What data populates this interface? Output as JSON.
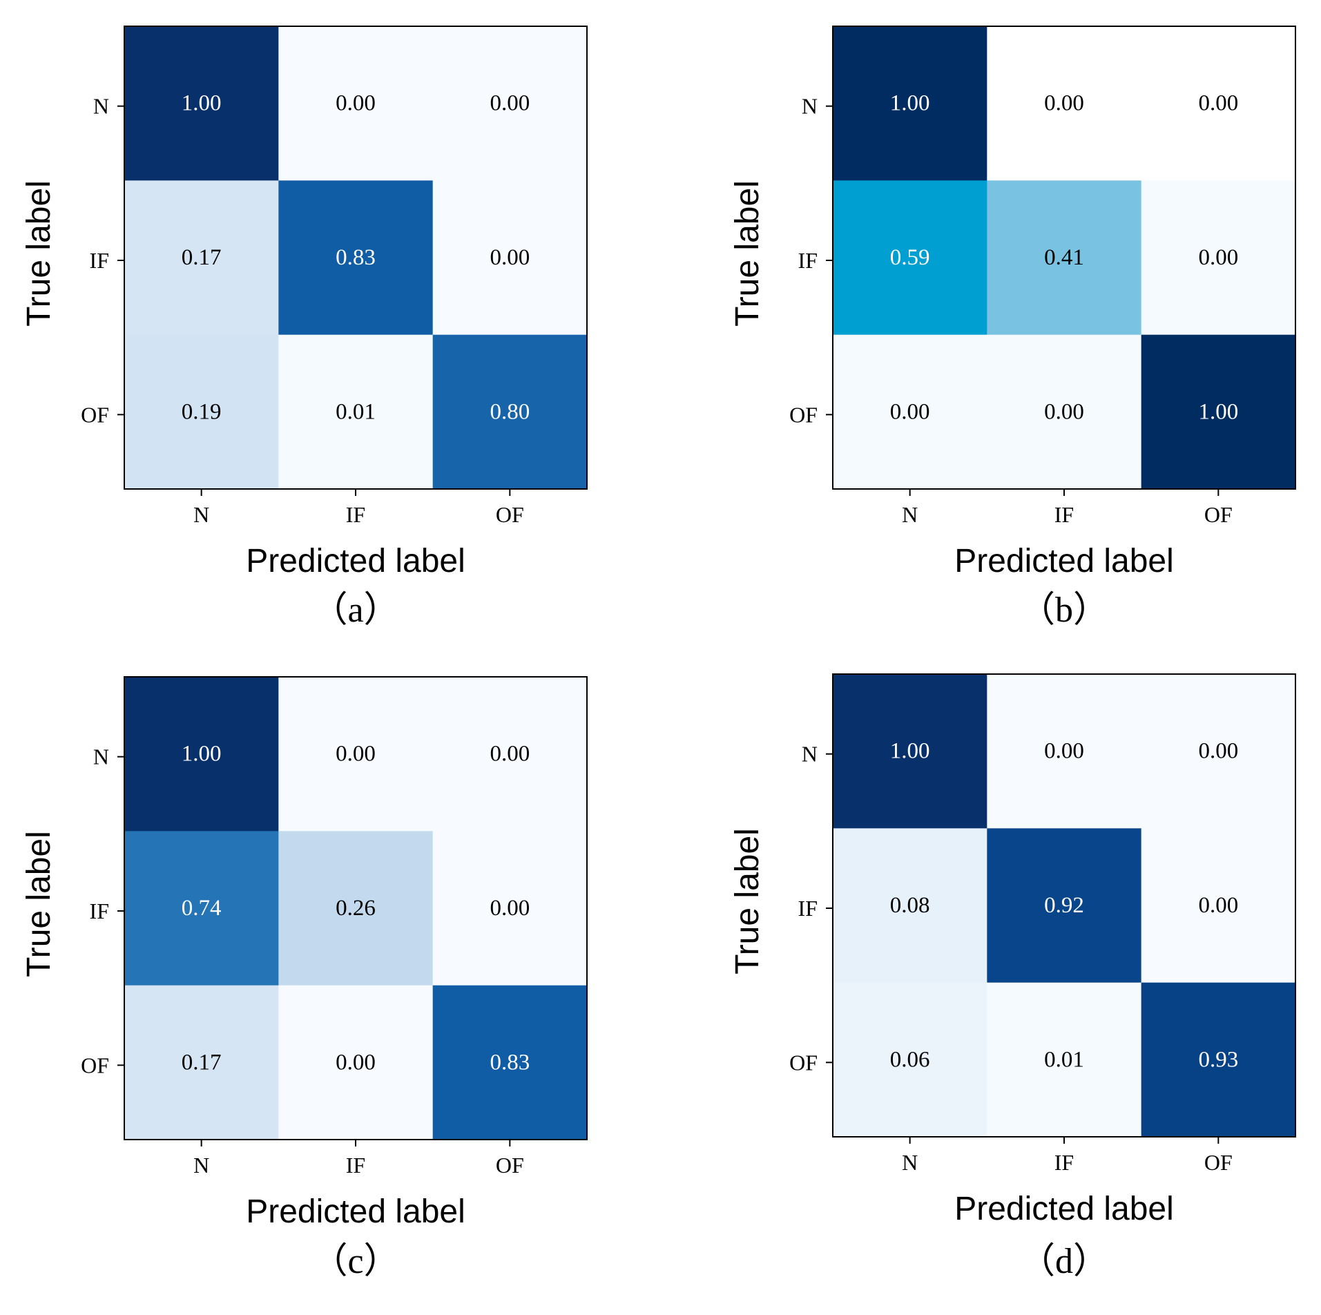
{
  "chart_data": [
    {
      "type": "heatmap",
      "caption": "（a）",
      "xlabel": "Predicted label",
      "ylabel": "True label",
      "x_categories": [
        "N",
        "IF",
        "OF"
      ],
      "y_categories": [
        "N",
        "IF",
        "OF"
      ],
      "values": [
        [
          1.0,
          0.0,
          0.0
        ],
        [
          0.17,
          0.83,
          0.0
        ],
        [
          0.19,
          0.01,
          0.8
        ]
      ],
      "value_labels": [
        [
          "1.00",
          "0.00",
          "0.00"
        ],
        [
          "0.17",
          "0.83",
          "0.00"
        ],
        [
          "0.19",
          "0.01",
          "0.80"
        ]
      ],
      "colormap": "Blues",
      "range": [
        0,
        1
      ]
    },
    {
      "type": "heatmap",
      "caption": "（b）",
      "xlabel": "Predicted label",
      "ylabel": "True label",
      "x_categories": [
        "N",
        "IF",
        "OF"
      ],
      "y_categories": [
        "N",
        "IF",
        "OF"
      ],
      "values": [
        [
          1.0,
          0.0,
          0.0
        ],
        [
          0.59,
          0.41,
          0.0
        ],
        [
          0.0,
          0.0,
          1.0
        ]
      ],
      "value_labels": [
        [
          "1.00",
          "0.00",
          "0.00"
        ],
        [
          "0.59",
          "0.41",
          "0.00"
        ],
        [
          "0.00",
          "0.00",
          "1.00"
        ]
      ],
      "colormap": "teal-blues",
      "cell_colors": [
        [
          "#002c62",
          "#ffffff",
          "#ffffff"
        ],
        [
          "#009fd1",
          "#79c2e1",
          "#f5fafe"
        ],
        [
          "#f5fafe",
          "#f5fafe",
          "#002c62"
        ]
      ],
      "range": [
        0,
        1
      ]
    },
    {
      "type": "heatmap",
      "caption": "（c）",
      "xlabel": "Predicted label",
      "ylabel": "True label",
      "x_categories": [
        "N",
        "IF",
        "OF"
      ],
      "y_categories": [
        "N",
        "IF",
        "OF"
      ],
      "values": [
        [
          1.0,
          0.0,
          0.0
        ],
        [
          0.74,
          0.26,
          0.0
        ],
        [
          0.17,
          0.0,
          0.83
        ]
      ],
      "value_labels": [
        [
          "1.00",
          "0.00",
          "0.00"
        ],
        [
          "0.74",
          "0.26",
          "0.00"
        ],
        [
          "0.17",
          "0.00",
          "0.83"
        ]
      ],
      "colormap": "Blues",
      "range": [
        0,
        1
      ]
    },
    {
      "type": "heatmap",
      "caption": "（d）",
      "xlabel": "Predicted label",
      "ylabel": "True label",
      "x_categories": [
        "N",
        "IF",
        "OF"
      ],
      "y_categories": [
        "N",
        "IF",
        "OF"
      ],
      "values": [
        [
          1.0,
          0.0,
          0.0
        ],
        [
          0.08,
          0.92,
          0.0
        ],
        [
          0.06,
          0.01,
          0.93
        ]
      ],
      "value_labels": [
        [
          "1.00",
          "0.00",
          "0.00"
        ],
        [
          "0.08",
          "0.92",
          "0.00"
        ],
        [
          "0.06",
          "0.01",
          "0.93"
        ]
      ],
      "colormap": "Blues",
      "range": [
        0,
        1
      ]
    }
  ],
  "colors": {
    "dark_text_threshold": 0.5,
    "light_text": "#ffffff",
    "dark_text": "#000000",
    "axis_color": "#000000"
  }
}
